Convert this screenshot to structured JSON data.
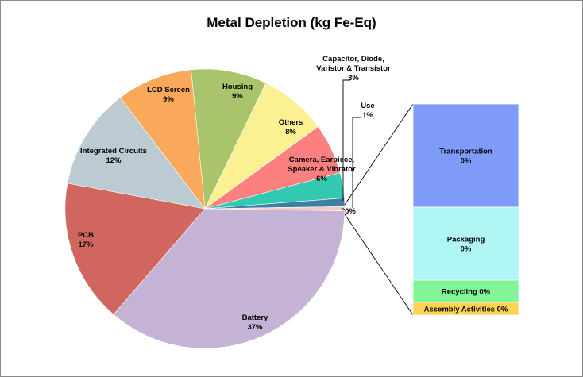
{
  "chart_data": {
    "type": "pie",
    "title": "Metal Depletion (kg Fe-Eq)",
    "slices": [
      {
        "name": "Housing",
        "value": 9,
        "label": [
          "Housing",
          "9%"
        ],
        "color": "#a9c46a"
      },
      {
        "name": "Others",
        "value": 8,
        "label": [
          "Others",
          "8%"
        ],
        "color": "#fbf092"
      },
      {
        "name": "Camera, Earpiece, Speaker & Vibrator",
        "value": 6,
        "label": [
          "Camera, Earpiece,",
          "Speaker & Vibrator",
          "6%"
        ],
        "color": "#fc8080"
      },
      {
        "name": "Capacitor, Diode, Varistor & Transistor",
        "value": 3,
        "label": [
          "Capacitor, Diode,",
          "Varistor & Transistor",
          "3%"
        ],
        "color": "#33c9b0"
      },
      {
        "name": "Use",
        "value": 1,
        "label": [
          "Use",
          "1%"
        ],
        "color": "#3f7fa4"
      },
      {
        "name": "Other (0%)",
        "value": 0.5,
        "label": [
          "0%"
        ],
        "color": "#f7c8c4"
      },
      {
        "name": "Battery",
        "value": 37,
        "label": [
          "Battery",
          "37%"
        ],
        "color": "#c4b3d5"
      },
      {
        "name": "PCB",
        "value": 17,
        "label": [
          "PCB",
          "17%"
        ],
        "color": "#d0665e"
      },
      {
        "name": "Integrated Circuits",
        "value": 12,
        "label": [
          "Integrated Circuits",
          "12%"
        ],
        "color": "#bccad1"
      },
      {
        "name": "LCD Screen",
        "value": 9,
        "label": [
          "LCD Screen",
          "9%"
        ],
        "color": "#faa85a"
      }
    ],
    "breakout": [
      {
        "name": "Transportation",
        "value": 0,
        "label": [
          "Transportation",
          "0%"
        ],
        "color": "#7f9bfa"
      },
      {
        "name": "Packaging",
        "value": 0,
        "label": [
          "Packaging",
          "0%"
        ],
        "color": "#aff5f3"
      },
      {
        "name": "Recycling",
        "value": 0,
        "label": [
          "Recycling 0%"
        ],
        "color": "#82f598"
      },
      {
        "name": "Assembly Activities",
        "value": 0,
        "label": [
          "Assembly Activities 0%"
        ],
        "color": "#fcd450"
      }
    ]
  }
}
